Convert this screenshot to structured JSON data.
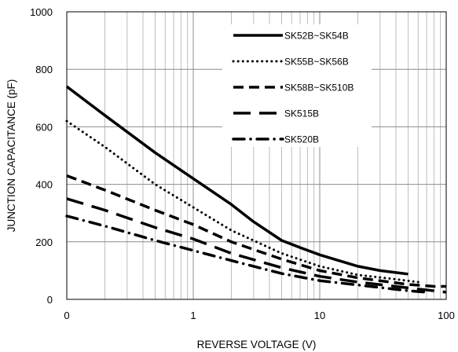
{
  "chart_data": {
    "type": "line",
    "title": "",
    "xlabel": "REVERSE VOLTAGE (V)",
    "ylabel": "JUNCTION CAPACITANCE (pF)",
    "x_scale": "log",
    "xlim": [
      0.1,
      100
    ],
    "ylim": [
      0,
      1000
    ],
    "x_ticks": [
      "0",
      "1",
      "10",
      "100"
    ],
    "y_ticks": [
      "0",
      "200",
      "400",
      "600",
      "800",
      "1000"
    ],
    "grid": true,
    "legend_position": "top-right",
    "series": [
      {
        "name": "SK52B~SK54B",
        "style": "solid",
        "points": [
          [
            0.1,
            740
          ],
          [
            0.2,
            640
          ],
          [
            0.5,
            510
          ],
          [
            1,
            420
          ],
          [
            2,
            330
          ],
          [
            3,
            270
          ],
          [
            5,
            205
          ],
          [
            7,
            180
          ],
          [
            10,
            155
          ],
          [
            20,
            115
          ],
          [
            30,
            100
          ],
          [
            50,
            88
          ]
        ]
      },
      {
        "name": "SK55B~SK56B",
        "style": "dotted",
        "points": [
          [
            0.1,
            620
          ],
          [
            0.2,
            530
          ],
          [
            0.5,
            400
          ],
          [
            1,
            320
          ],
          [
            2,
            240
          ],
          [
            5,
            160
          ],
          [
            10,
            115
          ],
          [
            20,
            85
          ],
          [
            40,
            70
          ],
          [
            60,
            60
          ]
        ]
      },
      {
        "name": "SK58B~SK510B",
        "style": "dashed",
        "points": [
          [
            0.1,
            430
          ],
          [
            0.2,
            380
          ],
          [
            0.5,
            310
          ],
          [
            1,
            260
          ],
          [
            2,
            200
          ],
          [
            5,
            140
          ],
          [
            10,
            100
          ],
          [
            20,
            75
          ],
          [
            50,
            52
          ],
          [
            80,
            45
          ],
          [
            100,
            45
          ]
        ]
      },
      {
        "name": "SK515B",
        "style": "long-dash",
        "points": [
          [
            0.1,
            350
          ],
          [
            0.2,
            310
          ],
          [
            0.5,
            250
          ],
          [
            1,
            210
          ],
          [
            2,
            160
          ],
          [
            5,
            110
          ],
          [
            10,
            80
          ],
          [
            20,
            60
          ],
          [
            50,
            40
          ],
          [
            100,
            25
          ]
        ]
      },
      {
        "name": "SK520B",
        "style": "dash-dot",
        "points": [
          [
            0.1,
            290
          ],
          [
            0.2,
            255
          ],
          [
            0.5,
            205
          ],
          [
            1,
            170
          ],
          [
            2,
            135
          ],
          [
            5,
            90
          ],
          [
            10,
            65
          ],
          [
            20,
            50
          ],
          [
            50,
            30
          ],
          [
            70,
            25
          ]
        ]
      }
    ]
  },
  "colors": {
    "line": "#000000",
    "grid": "#bdbdbd",
    "background": "#ffffff"
  }
}
